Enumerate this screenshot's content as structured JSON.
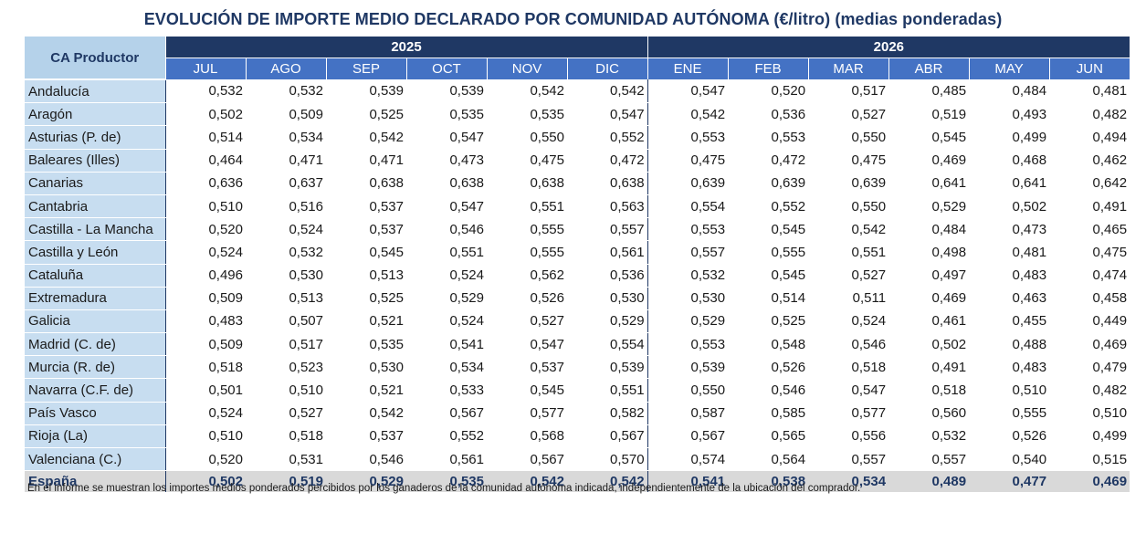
{
  "title": "EVOLUCIÓN DE IMPORTE MEDIO DECLARADO POR COMUNIDAD AUTÓNOMA (€/litro) (medias ponderadas)",
  "table": {
    "ca_header": "CA Productor",
    "years": [
      {
        "label": "2025",
        "span": 6
      },
      {
        "label": "2026",
        "span": 6
      }
    ],
    "months": [
      "JUL",
      "AGO",
      "SEP",
      "OCT",
      "NOV",
      "DIC",
      "ENE",
      "FEB",
      "MAR",
      "ABR",
      "MAY",
      "JUN"
    ],
    "rows": [
      {
        "name": "Andalucía",
        "values": [
          "0,532",
          "0,532",
          "0,539",
          "0,539",
          "0,542",
          "0,542",
          "0,547",
          "0,520",
          "0,517",
          "0,485",
          "0,484",
          "0,481"
        ]
      },
      {
        "name": "Aragón",
        "values": [
          "0,502",
          "0,509",
          "0,525",
          "0,535",
          "0,535",
          "0,547",
          "0,542",
          "0,536",
          "0,527",
          "0,519",
          "0,493",
          "0,482"
        ]
      },
      {
        "name": "Asturias (P. de)",
        "values": [
          "0,514",
          "0,534",
          "0,542",
          "0,547",
          "0,550",
          "0,552",
          "0,553",
          "0,553",
          "0,550",
          "0,545",
          "0,499",
          "0,494"
        ]
      },
      {
        "name": "Baleares (Illes)",
        "values": [
          "0,464",
          "0,471",
          "0,471",
          "0,473",
          "0,475",
          "0,472",
          "0,475",
          "0,472",
          "0,475",
          "0,469",
          "0,468",
          "0,462"
        ]
      },
      {
        "name": "Canarias",
        "values": [
          "0,636",
          "0,637",
          "0,638",
          "0,638",
          "0,638",
          "0,638",
          "0,639",
          "0,639",
          "0,639",
          "0,641",
          "0,641",
          "0,642"
        ]
      },
      {
        "name": "Cantabria",
        "values": [
          "0,510",
          "0,516",
          "0,537",
          "0,547",
          "0,551",
          "0,563",
          "0,554",
          "0,552",
          "0,550",
          "0,529",
          "0,502",
          "0,491"
        ]
      },
      {
        "name": "Castilla - La Mancha",
        "values": [
          "0,520",
          "0,524",
          "0,537",
          "0,546",
          "0,555",
          "0,557",
          "0,553",
          "0,545",
          "0,542",
          "0,484",
          "0,473",
          "0,465"
        ]
      },
      {
        "name": "Castilla y León",
        "values": [
          "0,524",
          "0,532",
          "0,545",
          "0,551",
          "0,555",
          "0,561",
          "0,557",
          "0,555",
          "0,551",
          "0,498",
          "0,481",
          "0,475"
        ]
      },
      {
        "name": "Cataluña",
        "values": [
          "0,496",
          "0,530",
          "0,513",
          "0,524",
          "0,562",
          "0,536",
          "0,532",
          "0,545",
          "0,527",
          "0,497",
          "0,483",
          "0,474"
        ]
      },
      {
        "name": "Extremadura",
        "values": [
          "0,509",
          "0,513",
          "0,525",
          "0,529",
          "0,526",
          "0,530",
          "0,530",
          "0,514",
          "0,511",
          "0,469",
          "0,463",
          "0,458"
        ]
      },
      {
        "name": "Galicia",
        "values": [
          "0,483",
          "0,507",
          "0,521",
          "0,524",
          "0,527",
          "0,529",
          "0,529",
          "0,525",
          "0,524",
          "0,461",
          "0,455",
          "0,449"
        ]
      },
      {
        "name": "Madrid (C. de)",
        "values": [
          "0,509",
          "0,517",
          "0,535",
          "0,541",
          "0,547",
          "0,554",
          "0,553",
          "0,548",
          "0,546",
          "0,502",
          "0,488",
          "0,469"
        ]
      },
      {
        "name": "Murcia (R. de)",
        "values": [
          "0,518",
          "0,523",
          "0,530",
          "0,534",
          "0,537",
          "0,539",
          "0,539",
          "0,526",
          "0,518",
          "0,491",
          "0,483",
          "0,479"
        ]
      },
      {
        "name": "Navarra (C.F. de)",
        "values": [
          "0,501",
          "0,510",
          "0,521",
          "0,533",
          "0,545",
          "0,551",
          "0,550",
          "0,546",
          "0,547",
          "0,518",
          "0,510",
          "0,482"
        ]
      },
      {
        "name": "País Vasco",
        "values": [
          "0,524",
          "0,527",
          "0,542",
          "0,567",
          "0,577",
          "0,582",
          "0,587",
          "0,585",
          "0,577",
          "0,560",
          "0,555",
          "0,510"
        ]
      },
      {
        "name": "Rioja (La)",
        "values": [
          "0,510",
          "0,518",
          "0,537",
          "0,552",
          "0,568",
          "0,567",
          "0,567",
          "0,565",
          "0,556",
          "0,532",
          "0,526",
          "0,499"
        ]
      },
      {
        "name": "Valenciana (C.)",
        "values": [
          "0,520",
          "0,531",
          "0,546",
          "0,561",
          "0,567",
          "0,570",
          "0,574",
          "0,564",
          "0,557",
          "0,557",
          "0,540",
          "0,515"
        ]
      }
    ],
    "total": {
      "name": "España",
      "values": [
        "0,502",
        "0,519",
        "0,529",
        "0,535",
        "0,542",
        "0,542",
        "0,541",
        "0,538",
        "0,534",
        "0,489",
        "0,477",
        "0,469"
      ]
    }
  },
  "footnote": "En el informe se muestran los importes medios ponderados percibidos por los ganaderos de la comunidad autónoma indicada, independientemente de la ubicación del comprador."
}
